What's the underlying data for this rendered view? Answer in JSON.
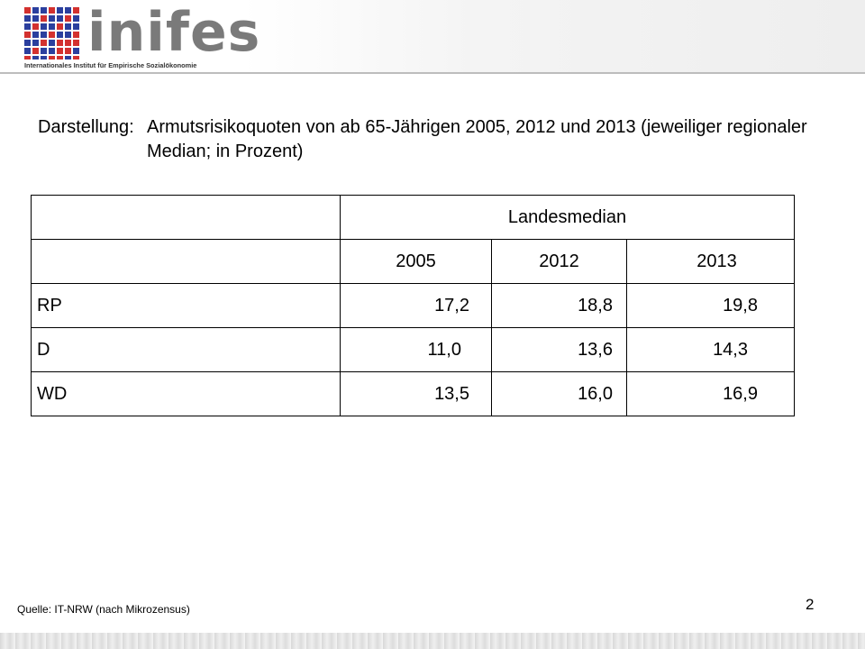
{
  "header": {
    "logo_text": "inifes",
    "logo_subtitle": "Internationales Institut für Empirische Sozialökonomie"
  },
  "title": {
    "prefix": "Darstellung:",
    "text": "Armutsrisikoquoten von ab 65-Jährigen 2005, 2012 und 2013  (jeweiliger regionaler Median; in Prozent)"
  },
  "table": {
    "group_header": "Landesmedian",
    "years": [
      "2005",
      "2012",
      "2013"
    ],
    "rows": [
      {
        "label": "RP",
        "values": [
          "17,2",
          "18,8",
          "19,8"
        ]
      },
      {
        "label": "D",
        "values": [
          "11,0",
          "13,6",
          "14,3"
        ]
      },
      {
        "label": "WD",
        "values": [
          "13,5",
          "16,0",
          "16,9"
        ]
      }
    ]
  },
  "footer": {
    "source": "Quelle: IT-NRW (nach Mikrozensus)",
    "page_number": "2"
  },
  "colors": {
    "logo_blue": "#2b3f9e",
    "logo_red": "#d3312f",
    "logo_gray": "#7a7a7a"
  }
}
